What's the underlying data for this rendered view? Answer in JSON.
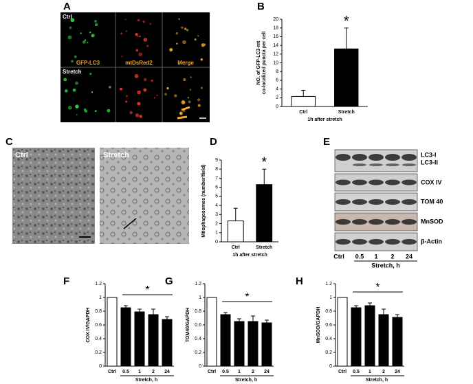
{
  "figure": {
    "panel_a": {
      "label": "A",
      "row_labels": [
        "Ctrl",
        "Stretch"
      ],
      "channels": [
        "GFP-LC3",
        "mtDsRed2",
        "Merge"
      ]
    },
    "panel_c": {
      "label": "C",
      "images": [
        "Ctrl",
        "Stretch"
      ]
    },
    "panel_e": {
      "label": "E",
      "bands": [
        "LC3-I",
        "LC3-II",
        "COX IV",
        "TOM 40",
        "MnSOD",
        "β-Actin"
      ],
      "lanes": [
        "Ctrl",
        "0.5",
        "1",
        "2",
        "24"
      ],
      "lane_group": "Stretch, h"
    }
  },
  "chart_data": [
    {
      "type": "bar",
      "panel": "B",
      "ylabel": [
        "NO. of GFP-LC3-mt",
        "co-localized puncta per cell"
      ],
      "xlabel": "1h after stretch",
      "categories": [
        "Ctrl",
        "Stretch"
      ],
      "values": [
        2.3,
        13.2
      ],
      "errors": [
        1.4,
        4.8
      ],
      "colors": [
        "#ffffff",
        "#000000"
      ],
      "ylim": [
        0,
        20
      ],
      "yticks": [
        0,
        2,
        4,
        6,
        8,
        10,
        12,
        14,
        16,
        18,
        20
      ],
      "annotation": "*"
    },
    {
      "type": "bar",
      "panel": "D",
      "ylabel": [
        "Mitophagosomes (number/field)"
      ],
      "xlabel": "1h after stretch",
      "categories": [
        "Ctrl",
        "Stretch"
      ],
      "values": [
        2.3,
        6.3
      ],
      "errors": [
        1.4,
        1.7
      ],
      "colors": [
        "#ffffff",
        "#000000"
      ],
      "ylim": [
        0,
        9
      ],
      "yticks": [
        0,
        1,
        2,
        3,
        4,
        5,
        6,
        7,
        8,
        9
      ],
      "annotation": "*"
    },
    {
      "type": "bar",
      "panel": "F",
      "ylabel": [
        "COX IV/GAPDH"
      ],
      "xlabel": "Stretch, h",
      "categories": [
        "Ctrl",
        "0.5",
        "1",
        "2",
        "24"
      ],
      "values": [
        1,
        0.85,
        0.79,
        0.75,
        0.68
      ],
      "errors": [
        0,
        0.03,
        0.04,
        0.08,
        0.04
      ],
      "colors": [
        "#ffffff",
        "#000000",
        "#000000",
        "#000000",
        "#000000"
      ],
      "ylim": [
        0,
        1.2
      ],
      "yticks": [
        0,
        0.2,
        0.4,
        0.6,
        0.8,
        1,
        1.2
      ],
      "annotation": "*"
    },
    {
      "type": "bar",
      "panel": "G",
      "ylabel": [
        "TOM40/GAPDH"
      ],
      "xlabel": "Stretch, h",
      "categories": [
        "Ctrl",
        "0.5",
        "1",
        "2",
        "24"
      ],
      "values": [
        1,
        0.75,
        0.65,
        0.65,
        0.63
      ],
      "errors": [
        0,
        0.03,
        0.04,
        0.08,
        0.04
      ],
      "colors": [
        "#ffffff",
        "#000000",
        "#000000",
        "#000000",
        "#000000"
      ],
      "ylim": [
        0,
        1.2
      ],
      "yticks": [
        0,
        0.2,
        0.4,
        0.6,
        0.8,
        1,
        1.2
      ],
      "annotation": "*"
    },
    {
      "type": "bar",
      "panel": "H",
      "ylabel": [
        "MnSOD/GAPDH"
      ],
      "xlabel": "Stretch, h",
      "categories": [
        "Ctrl",
        "0.5",
        "1",
        "2",
        "24"
      ],
      "values": [
        1,
        0.85,
        0.88,
        0.75,
        0.71
      ],
      "errors": [
        0,
        0.03,
        0.04,
        0.08,
        0.04
      ],
      "colors": [
        "#ffffff",
        "#000000",
        "#000000",
        "#000000",
        "#000000"
      ],
      "ylim": [
        0,
        1.2
      ],
      "yticks": [
        0,
        0.2,
        0.4,
        0.6,
        0.8,
        1,
        1.2
      ],
      "annotation": "*"
    }
  ]
}
